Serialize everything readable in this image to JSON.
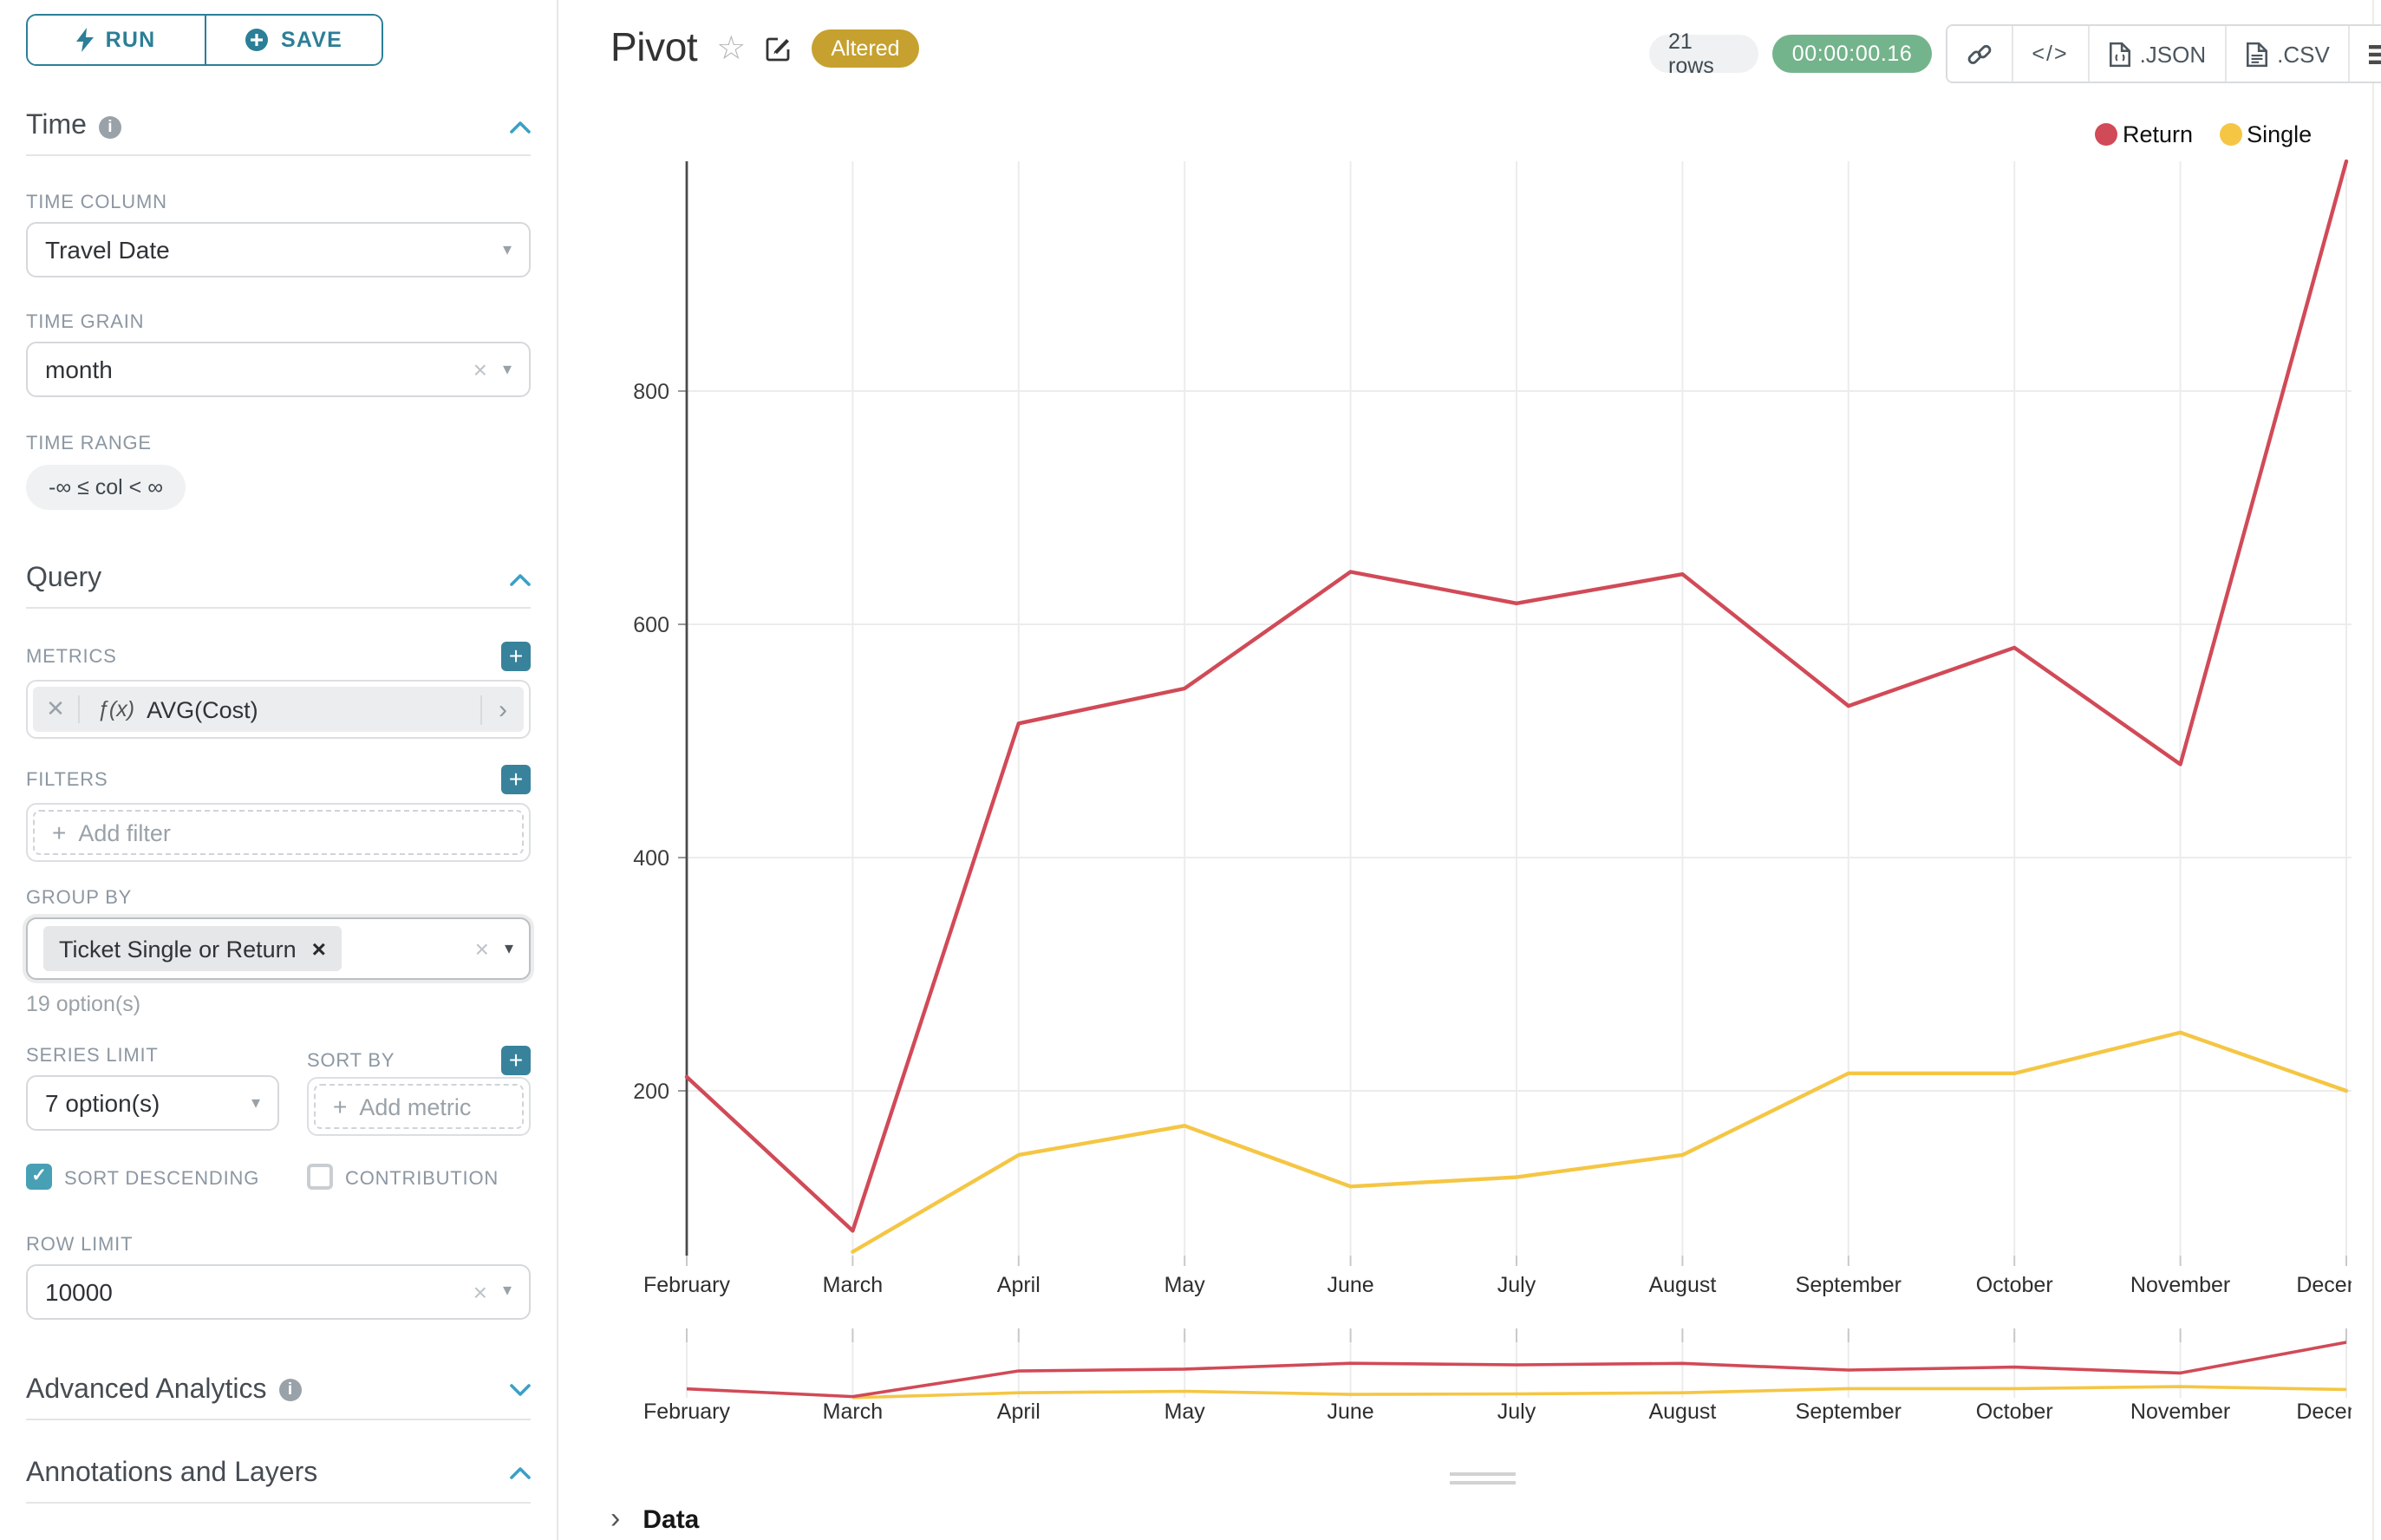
{
  "sidebar": {
    "run_button": "RUN",
    "save_button": "SAVE",
    "time_section": {
      "title": "Time",
      "time_column_label": "TIME COLUMN",
      "time_column_value": "Travel Date",
      "time_grain_label": "TIME GRAIN",
      "time_grain_value": "month",
      "time_range_label": "TIME RANGE",
      "time_range_value": "-∞ ≤ col < ∞"
    },
    "query_section": {
      "title": "Query",
      "metrics_label": "METRICS",
      "metric_fx": "ƒ(x)",
      "metric_value": "AVG(Cost)",
      "filters_label": "FILTERS",
      "add_filter_placeholder": "Add filter",
      "group_by_label": "GROUP BY",
      "group_by_chip": "Ticket Single or Return",
      "group_by_hint": "19 option(s)",
      "series_limit_label": "SERIES LIMIT",
      "series_limit_value": "7 option(s)",
      "sort_by_label": "SORT BY",
      "add_metric_placeholder": "Add metric",
      "sort_descending_label": "SORT DESCENDING",
      "sort_descending_checked": true,
      "contribution_label": "CONTRIBUTION",
      "contribution_checked": false,
      "row_limit_label": "ROW LIMIT",
      "row_limit_value": "10000"
    },
    "advanced_analytics_title": "Advanced Analytics",
    "annotations_title": "Annotations and Layers"
  },
  "header": {
    "title": "Pivot",
    "altered_badge": "Altered",
    "row_count": "21 rows",
    "timer": "00:00:00.16",
    "code_button": "</>",
    "json_button": ".JSON",
    "csv_button": ".CSV"
  },
  "chart_data": {
    "type": "line",
    "title": "Pivot",
    "x": [
      "February",
      "March",
      "April",
      "May",
      "June",
      "July",
      "August",
      "September",
      "October",
      "November",
      "December"
    ],
    "xlabel": "",
    "ylabel": "AVG(Cost)",
    "yticks": [
      200,
      400,
      600,
      800
    ],
    "ylim": [
      60,
      1000
    ],
    "grid": true,
    "legend_position": "top-right",
    "has_preview_brush": true,
    "series": [
      {
        "name": "Return",
        "color": "#d14a57",
        "values": [
          212,
          80,
          515,
          545,
          645,
          618,
          643,
          530,
          580,
          480,
          1000
        ]
      },
      {
        "name": "Single",
        "color": "#f5c644",
        "values": [
          null,
          62,
          145,
          170,
          118,
          126,
          145,
          215,
          215,
          250,
          200
        ]
      }
    ]
  },
  "footer": {
    "data_label": "Data"
  },
  "colors": {
    "accent_teal": "#2b7f97",
    "chevron_blue": "#3aa0c7",
    "return_red": "#d14a57",
    "single_yellow": "#f5c644",
    "altered_gold": "#c6a12f",
    "timer_green": "#74b48c",
    "rows_pill_gray": "#eff1f2"
  }
}
